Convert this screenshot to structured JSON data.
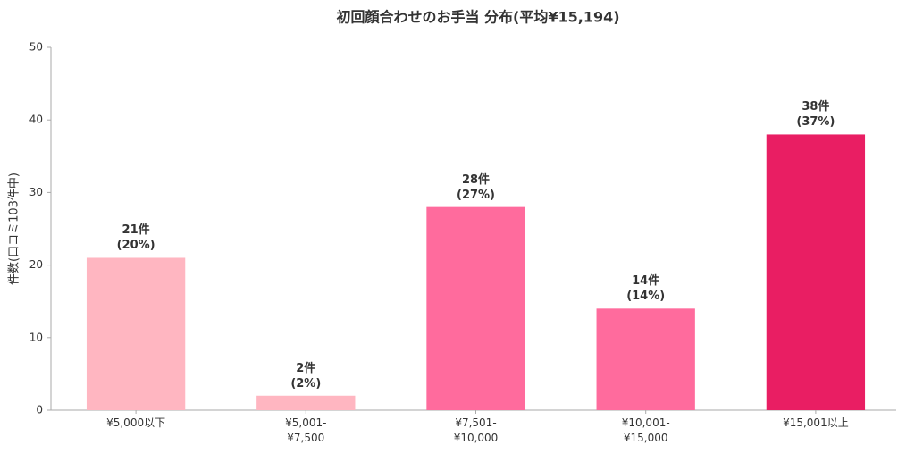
{
  "chart_data": {
    "type": "bar",
    "title": "初回顔合わせのお手当 分布(平均¥15,194)",
    "y_label": "件数(口コミ103件中)",
    "categories": [
      "¥5,000以下",
      "¥5,001-\n¥7,500",
      "¥7,501-\n¥10,000",
      "¥10,001-\n¥15,000",
      "¥15,001以上"
    ],
    "values": [
      21,
      2,
      28,
      14,
      38
    ],
    "value_labels": [
      "21件\n(20%)",
      "2件\n(2%)",
      "28件\n(27%)",
      "14件\n(14%)",
      "38件\n(37%)"
    ],
    "colors": [
      "#ffb6c1",
      "#ffb6c1",
      "#ff6b9d",
      "#ff6b9d",
      "#e91e63"
    ],
    "ylim": [
      0,
      50
    ],
    "yticks": [
      0,
      10,
      20,
      30,
      40,
      50
    ],
    "grid": false
  }
}
